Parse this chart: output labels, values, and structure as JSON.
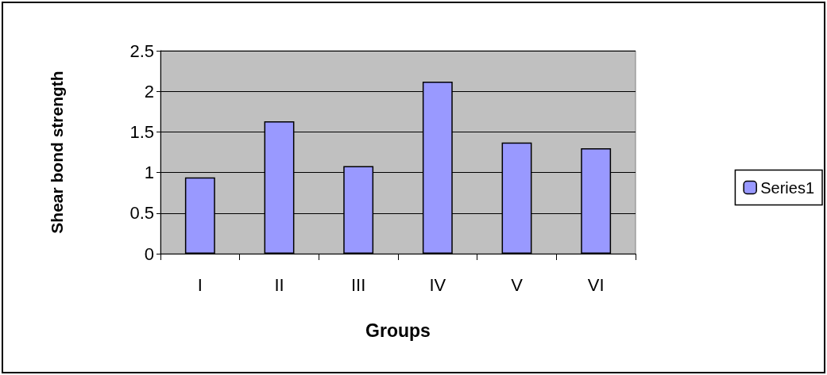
{
  "chart_data": {
    "type": "bar",
    "xlabel": "Groups",
    "ylabel": "Shear bond strength",
    "categories": [
      "I",
      "II",
      "III",
      "IV",
      "V",
      "VI"
    ],
    "series": [
      {
        "name": "Series1",
        "color": "#9999ff",
        "values": [
          0.94,
          1.63,
          1.08,
          2.12,
          1.37,
          1.3
        ]
      }
    ],
    "ylim": [
      0,
      2.5
    ],
    "yticks": [
      0,
      0.5,
      1,
      1.5,
      2,
      2.5
    ],
    "grid": "y",
    "legend": "right"
  }
}
